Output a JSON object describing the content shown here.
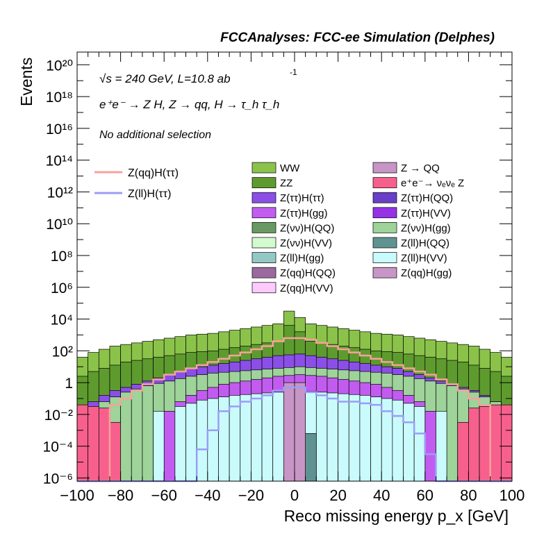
{
  "header": {
    "title": "FCCAnalyses: FCC-ee Simulation (Delphes)"
  },
  "annotations": {
    "energy_line": "√s = 240 GeV, L=10.8 ab",
    "lumi_exponent": "-1",
    "process_line": "e⁺e⁻ → Z H, Z → qq, H → τ_h τ_h",
    "selection_line": "No additional selection"
  },
  "chart_data": {
    "type": "bar",
    "subtype": "stacked-histogram-log",
    "xlabel": "Reco missing energy p_x [GeV]",
    "ylabel": "Events",
    "xlim": [
      -100,
      100
    ],
    "ylim_log10": [
      -6.2,
      20.8
    ],
    "log_y": true,
    "grid": false,
    "x_ticks": [
      -100,
      -80,
      -60,
      -40,
      -20,
      0,
      20,
      40,
      60,
      80,
      100
    ],
    "x_tick_labels": [
      "−100",
      "−80",
      "−60",
      "−40",
      "−20",
      "0",
      "20",
      "40",
      "60",
      "80",
      "100"
    ],
    "y_ticks_log10": [
      -6,
      -4,
      -2,
      0,
      2,
      4,
      6,
      8,
      10,
      12,
      14,
      16,
      18,
      20
    ],
    "y_tick_labels": [
      "10⁻⁶",
      "10⁻⁴",
      "10⁻²",
      "1",
      "10²",
      "10⁴",
      "10⁶",
      "10⁸",
      "10¹⁰",
      "10¹²",
      "10¹⁴",
      "10¹⁶",
      "10¹⁸",
      "10²⁰"
    ],
    "bin_edges": [
      -100,
      -95,
      -90,
      -85,
      -80,
      -75,
      -70,
      -65,
      -60,
      -55,
      -50,
      -45,
      -40,
      -35,
      -30,
      -25,
      -20,
      -15,
      -10,
      -5,
      0,
      5,
      10,
      15,
      20,
      25,
      30,
      35,
      40,
      45,
      50,
      55,
      60,
      65,
      70,
      75,
      80,
      85,
      90,
      95,
      100
    ],
    "stack_tops": [
      {
        "name": "WW",
        "color": "#8bc34a",
        "log10": [
          1.6,
          1.9,
          2.1,
          2.3,
          2.4,
          2.5,
          2.6,
          2.7,
          2.8,
          2.9,
          3.0,
          3.05,
          3.1,
          3.2,
          3.3,
          3.4,
          3.5,
          3.6,
          3.7,
          4.5,
          4.1,
          3.7,
          3.6,
          3.5,
          3.4,
          3.3,
          3.2,
          3.1,
          3.05,
          3.0,
          2.9,
          2.8,
          2.7,
          2.6,
          2.5,
          2.4,
          2.3,
          2.1,
          1.9,
          1.6
        ]
      },
      {
        "name": "ZZ",
        "color": "#5e9b2e",
        "log10": [
          0.4,
          0.7,
          0.9,
          1.1,
          1.3,
          1.4,
          1.5,
          1.6,
          1.7,
          1.8,
          1.9,
          1.95,
          2.0,
          2.1,
          2.2,
          2.3,
          2.4,
          2.5,
          2.6,
          3.6,
          3.2,
          2.6,
          2.5,
          2.4,
          2.3,
          2.2,
          2.1,
          2.0,
          1.95,
          1.9,
          1.8,
          1.7,
          1.6,
          1.5,
          1.4,
          1.3,
          1.1,
          0.9,
          0.7,
          0.4
        ]
      },
      {
        "name": "Z(ττ)H(ττ)",
        "color": "#8b4fe8",
        "log10": [
          -1.9,
          -1.2,
          -0.8,
          -0.5,
          -0.3,
          -0.1,
          0.1,
          0.3,
          0.5,
          0.7,
          0.9,
          1.0,
          1.1,
          1.2,
          1.3,
          1.4,
          1.5,
          1.6,
          1.7,
          1.75,
          1.8,
          1.7,
          1.6,
          1.5,
          1.4,
          1.3,
          1.2,
          1.1,
          1.0,
          0.9,
          0.7,
          0.5,
          0.3,
          0.1,
          -0.1,
          -0.3,
          -0.5,
          -0.8,
          -1.2,
          -1.9
        ]
      },
      {
        "name": "Z(νν)H(gg)",
        "color": "#9ed39a",
        "log10": [
          -2.0,
          -1.6,
          -1.2,
          -0.9,
          -0.6,
          -0.4,
          -0.2,
          -0.05,
          0.1,
          0.25,
          0.4,
          0.5,
          0.6,
          0.65,
          0.7,
          0.75,
          0.8,
          0.85,
          0.9,
          0.95,
          1.0,
          0.95,
          0.9,
          0.85,
          0.8,
          0.75,
          0.7,
          0.65,
          0.6,
          0.5,
          0.4,
          0.25,
          0.1,
          -0.05,
          -0.2,
          -0.4,
          -0.6,
          -0.9,
          -1.2,
          -1.6
        ]
      },
      {
        "name": "Z(ττ)H(gg)",
        "color": "#c25cf0",
        "log10": [
          -6.2,
          -6.2,
          -6.2,
          -6.2,
          -6.2,
          -6.2,
          -6.2,
          -2.5,
          -1.8,
          -1.2,
          -0.8,
          -0.5,
          -0.3,
          -0.1,
          0.0,
          0.1,
          0.2,
          0.3,
          0.4,
          0.45,
          0.5,
          0.45,
          0.4,
          0.3,
          0.2,
          0.1,
          0.0,
          -0.1,
          -0.3,
          -0.5,
          -0.8,
          -1.2,
          -1.8,
          -2.5,
          -6.2,
          -6.2,
          -6.2,
          -6.2,
          -6.2,
          -6.2
        ]
      },
      {
        "name": "e⁺e⁻→ νₑνₑ Z",
        "color": "#f7608d",
        "log10": [
          -1.4,
          -1.5,
          -1.6,
          -2.5,
          -6.2,
          -6.2,
          -6.2,
          -6.2,
          -6.2,
          -6.2,
          -6.2,
          -6.2,
          -6.2,
          -6.2,
          -6.2,
          -6.2,
          -6.2,
          -6.2,
          -6.2,
          -6.2,
          -6.2,
          -6.2,
          -6.2,
          -6.2,
          -6.2,
          -6.2,
          -6.2,
          -6.2,
          -6.2,
          -6.2,
          -6.2,
          -6.2,
          -6.2,
          -6.2,
          -6.2,
          -2.5,
          -1.6,
          -1.5,
          -1.4,
          -1.4
        ]
      },
      {
        "name": "Z(ll)H(VV)",
        "color": "#c9fbfd",
        "log10": [
          -6.2,
          -6.2,
          -6.2,
          -6.2,
          -6.2,
          -6.2,
          -6.2,
          -1.8,
          -6.2,
          -1.5,
          -1.3,
          -1.1,
          -1.0,
          -0.9,
          -0.8,
          -0.75,
          -0.7,
          -0.65,
          -0.6,
          -0.55,
          -0.5,
          -0.55,
          -0.6,
          -0.65,
          -0.7,
          -0.75,
          -0.8,
          -0.9,
          -1.0,
          -1.1,
          -1.3,
          -1.5,
          -6.2,
          -1.8,
          -6.2,
          -6.2,
          -6.2,
          -6.2,
          -6.2,
          -6.2
        ]
      },
      {
        "name": "Z(ll)H(QQ)",
        "color": "#5f9391",
        "log10": [
          -6.2,
          -6.2,
          -6.2,
          -6.2,
          -6.2,
          -6.2,
          -6.2,
          -6.2,
          -6.2,
          -6.2,
          -6.2,
          -6.2,
          -6.2,
          -6.2,
          -6.2,
          -6.2,
          -6.2,
          -6.2,
          -6.2,
          -3.0,
          -3.0,
          -3.2,
          -6.2,
          -6.2,
          -6.2,
          -6.2,
          -6.2,
          -6.2,
          -6.2,
          -6.2,
          -6.2,
          -6.2,
          -6.2,
          -6.2,
          -6.2,
          -6.2,
          -6.2,
          -6.2,
          -6.2,
          -6.2
        ]
      },
      {
        "name": "Z(qq)H(gg)",
        "color": "#c795c6",
        "log10": [
          -6.2,
          -6.2,
          -6.2,
          -6.2,
          -6.2,
          -6.2,
          -6.2,
          -6.2,
          -6.2,
          -6.2,
          -6.2,
          -6.2,
          -6.2,
          -6.2,
          -6.2,
          -6.2,
          -6.2,
          -6.2,
          -6.2,
          0.0,
          0.0,
          -6.2,
          -6.2,
          -6.2,
          -6.2,
          -6.2,
          -6.2,
          -6.2,
          -6.2,
          -6.2,
          -6.2,
          -6.2,
          -6.2,
          -6.2,
          -6.2,
          -6.2,
          -6.2,
          -6.2,
          -6.2,
          -6.2
        ]
      }
    ],
    "signal_lines": [
      {
        "name": "Z(qq)H(ττ)",
        "color": "#f8a19a",
        "log10": [
          -6.2,
          -6.2,
          -6.2,
          -1.4,
          -1.0,
          -0.5,
          -0.1,
          0.2,
          0.5,
          0.7,
          0.9,
          1.1,
          1.3,
          1.5,
          1.7,
          1.9,
          2.1,
          2.3,
          2.6,
          2.8,
          2.8,
          2.7,
          2.5,
          2.3,
          2.1,
          1.9,
          1.7,
          1.5,
          1.3,
          1.1,
          0.9,
          0.7,
          0.5,
          0.2,
          -0.1,
          -0.5,
          -1.0,
          -1.4,
          -6.2,
          -6.2
        ]
      },
      {
        "name": "Z(ll)H(ττ)",
        "color": "#9b9cf6",
        "log10": [
          -6.2,
          -6.2,
          -6.2,
          -6.2,
          -6.2,
          -6.2,
          -6.2,
          -6.2,
          -6.2,
          -6.2,
          -6.2,
          -4.2,
          -3.0,
          -1.8,
          -1.5,
          -1.2,
          -1.0,
          -0.8,
          -0.5,
          -0.3,
          -0.3,
          -0.6,
          -0.8,
          -1.0,
          -1.2,
          -1.2,
          -1.3,
          -1.4,
          -1.8,
          -2.1,
          -2.5,
          -3.2,
          -4.5,
          -6.2,
          -6.2,
          -6.2,
          -6.2,
          -6.2,
          -6.2,
          -6.2
        ]
      }
    ],
    "legend_lines": [
      {
        "label": "Z(qq)H(ττ)",
        "color": "#f8a19a"
      },
      {
        "label": "Z(ll)H(ττ)",
        "color": "#9b9cf6"
      }
    ],
    "legend_fills": [
      {
        "label": "WW",
        "color": "#8bc34a"
      },
      {
        "label": "Z → QQ",
        "color": "#c795c6"
      },
      {
        "label": "ZZ",
        "color": "#5e9b2e"
      },
      {
        "label": "e⁺e⁻→ νₑνₑ Z",
        "color": "#f7608d"
      },
      {
        "label": "Z(ττ)H(ττ)",
        "color": "#8b4fe8"
      },
      {
        "label": "Z(ττ)H(QQ)",
        "color": "#6a3fc7"
      },
      {
        "label": "Z(ττ)H(gg)",
        "color": "#c25cf0"
      },
      {
        "label": "Z(ττ)H(VV)",
        "color": "#9532e6"
      },
      {
        "label": "Z(νν)H(QQ)",
        "color": "#6a9a63"
      },
      {
        "label": "Z(νν)H(gg)",
        "color": "#9ed39a"
      },
      {
        "label": "Z(νν)H(VV)",
        "color": "#d4fad0"
      },
      {
        "label": "Z(ll)H(QQ)",
        "color": "#5f9391"
      },
      {
        "label": "Z(ll)H(gg)",
        "color": "#93c8c6"
      },
      {
        "label": "Z(ll)H(VV)",
        "color": "#c9fbfd"
      },
      {
        "label": "Z(qq)H(QQ)",
        "color": "#9a6a9f"
      },
      {
        "label": "Z(qq)H(gg)",
        "color": "#c795c6"
      },
      {
        "label": "Z(qq)H(VV)",
        "color": "#fccafb"
      }
    ]
  }
}
